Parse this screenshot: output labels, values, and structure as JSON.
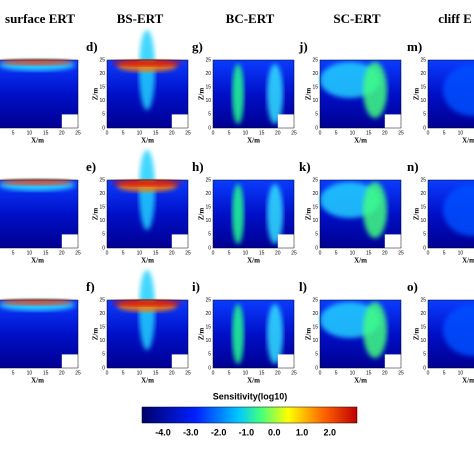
{
  "columns": [
    "surface ERT",
    "BS-ERT",
    "BC-ERT",
    "SC-ERT",
    "cliff E"
  ],
  "panel_labels": [
    [
      "d)",
      "e)",
      "f)"
    ],
    [
      "g)",
      "h)",
      "i)"
    ],
    [
      "j)",
      "k)",
      "l)"
    ],
    [
      "m)",
      "n)",
      "o)"
    ]
  ],
  "axes": {
    "x_label": "X/m",
    "y_label": "Z/m",
    "x_ticks": [
      "0",
      "5",
      "10",
      "15",
      "20",
      "25"
    ],
    "y_ticks": [
      "0",
      "5",
      "10",
      "15",
      "20",
      "25"
    ]
  },
  "colorbar": {
    "title": "Sensitivity(log10)",
    "ticks": [
      "-4.0",
      "-3.0",
      "-2.0",
      "-1.0",
      "0.0",
      "1.0",
      "2.0"
    ]
  }
}
